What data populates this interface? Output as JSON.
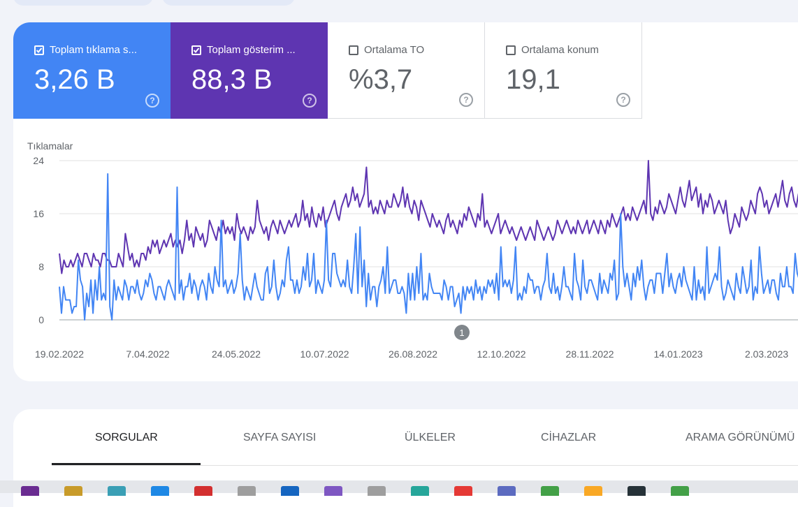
{
  "metrics": [
    {
      "label": "Toplam tıklama s...",
      "value": "3,26 B",
      "checked": true,
      "color": "#4285f4"
    },
    {
      "label": "Toplam gösterim ...",
      "value": "88,3 B",
      "checked": true,
      "color": "#5e35b1"
    },
    {
      "label": "Ortalama TO",
      "value": "%3,7",
      "checked": false
    },
    {
      "label": "Ortalama konum",
      "value": "19,1",
      "checked": false
    }
  ],
  "annotation": "1",
  "chart_data": {
    "type": "line",
    "ylabel": "Tıklamalar",
    "ylim": [
      0,
      24
    ],
    "y_ticks": [
      "24",
      "16",
      "8",
      "0"
    ],
    "x_ticks": [
      "19.02.2022",
      "7.04.2022",
      "24.05.2022",
      "10.07.2022",
      "26.08.2022",
      "12.10.2022",
      "28.11.2022",
      "14.01.2023",
      "2.03.2023"
    ],
    "x_start": "2022-02-19",
    "x_end": "2023-03-25",
    "series": [
      {
        "name": "Toplam tıklama sayısı",
        "color": "#4285f4",
        "values": [
          5,
          1,
          5,
          3,
          3,
          3,
          1,
          2,
          2,
          9,
          6,
          5,
          0,
          4,
          2,
          6,
          1,
          6,
          3,
          8,
          3,
          4,
          3,
          22,
          2,
          0,
          6,
          3,
          5,
          4,
          3,
          6,
          5,
          3,
          5,
          5,
          4,
          6,
          4,
          3,
          4,
          6,
          5,
          7,
          6,
          4,
          3,
          5,
          5,
          4,
          3,
          5,
          6,
          5,
          4,
          3,
          20,
          4,
          6,
          3,
          5,
          5,
          7,
          4,
          6,
          5,
          3,
          5,
          6,
          5,
          3,
          7,
          5,
          4,
          8,
          6,
          5,
          15,
          5,
          6,
          4,
          5,
          6,
          4,
          5,
          7,
          13,
          6,
          3,
          5,
          4,
          3,
          5,
          7,
          5,
          4,
          3,
          3,
          7,
          8,
          4,
          5,
          9,
          5,
          3,
          4,
          6,
          5,
          9,
          11,
          6,
          6,
          4,
          6,
          4,
          5,
          8,
          6,
          10,
          5,
          6,
          10,
          4,
          6,
          5,
          4,
          6,
          15,
          6,
          5,
          10,
          10,
          7,
          6,
          5,
          6,
          5,
          9,
          5,
          4,
          8,
          13,
          4,
          14,
          5,
          9,
          2,
          7,
          3,
          5,
          5,
          2,
          5,
          6,
          8,
          4,
          11,
          4,
          5,
          6,
          6,
          4,
          4,
          5,
          4,
          1,
          7,
          3,
          7,
          3,
          8,
          4,
          10,
          3,
          4,
          3,
          7,
          5,
          4,
          4,
          4,
          4,
          3,
          6,
          5,
          3,
          5,
          5,
          2,
          3,
          4,
          1,
          5,
          3,
          5,
          4,
          5,
          3,
          6,
          4,
          5,
          3,
          5,
          4,
          6,
          5,
          6,
          4,
          7,
          3,
          11,
          5,
          6,
          5,
          6,
          4,
          6,
          11,
          3,
          4,
          3,
          5,
          4,
          7,
          6,
          6,
          4,
          5,
          5,
          3,
          5,
          6,
          10,
          5,
          4,
          7,
          4,
          5,
          3,
          5,
          8,
          5,
          5,
          4,
          3,
          10,
          6,
          5,
          3,
          9,
          5,
          4,
          6,
          6,
          5,
          4,
          3,
          7,
          4,
          6,
          5,
          4,
          7,
          6,
          9,
          3,
          4,
          16,
          8,
          5,
          7,
          5,
          3,
          7,
          5,
          8,
          6,
          9,
          5,
          3,
          5,
          6,
          6,
          4,
          7,
          7,
          7,
          4,
          7,
          10,
          5,
          7,
          5,
          4,
          6,
          7,
          5,
          8,
          6,
          5,
          4,
          3,
          8,
          3,
          6,
          4,
          5,
          3,
          11,
          4,
          5,
          6,
          7,
          6,
          11,
          5,
          3,
          4,
          6,
          5,
          4,
          3,
          7,
          5,
          4,
          8,
          6,
          4,
          5,
          9,
          3,
          5,
          4,
          11,
          7,
          4,
          5,
          6,
          4,
          6,
          6,
          4,
          3,
          7,
          5,
          5,
          8,
          5,
          5,
          4,
          10,
          7,
          6,
          4,
          5,
          6,
          11,
          5
        ]
      },
      {
        "name": "Toplam gösterim sayısı",
        "color": "#5e35b1",
        "values": [
          10,
          7,
          9,
          8,
          8,
          9,
          8,
          9,
          10,
          9,
          8,
          10,
          10,
          9,
          8,
          10,
          9,
          9,
          8,
          10,
          10,
          9,
          9,
          8,
          8,
          8,
          10,
          9,
          8,
          13,
          11,
          9,
          10,
          8,
          9,
          8,
          10,
          10,
          9,
          11,
          10,
          12,
          11,
          12,
          10,
          11,
          12,
          11,
          12,
          13,
          11,
          12,
          11,
          12,
          10,
          12,
          15,
          12,
          13,
          11,
          14,
          13,
          12,
          13,
          11,
          12,
          15,
          14,
          13,
          12,
          14,
          13,
          15,
          13,
          14,
          13,
          14,
          12,
          16,
          14,
          13,
          14,
          13,
          12,
          14,
          13,
          14,
          18,
          15,
          14,
          13,
          14,
          12,
          14,
          15,
          14,
          13,
          15,
          14,
          13,
          14,
          15,
          14,
          15,
          16,
          14,
          15,
          18,
          15,
          16,
          14,
          17,
          15,
          14,
          16,
          15,
          17,
          14,
          15,
          16,
          17,
          18,
          16,
          15,
          17,
          18,
          19,
          17,
          18,
          20,
          18,
          19,
          17,
          18,
          19,
          23,
          17,
          18,
          16,
          17,
          16,
          18,
          17,
          16,
          18,
          17,
          17,
          19,
          18,
          17,
          18,
          20,
          17,
          19,
          17,
          16,
          18,
          17,
          15,
          18,
          17,
          16,
          15,
          14,
          16,
          15,
          14,
          15,
          14,
          13,
          15,
          16,
          14,
          15,
          14,
          13,
          15,
          14,
          16,
          15,
          17,
          16,
          15,
          14,
          16,
          15,
          19,
          14,
          15,
          14,
          13,
          14,
          15,
          16,
          13,
          14,
          15,
          14,
          13,
          14,
          13,
          12,
          13,
          14,
          13,
          12,
          13,
          14,
          13,
          12,
          15,
          14,
          13,
          12,
          13,
          14,
          13,
          12,
          13,
          15,
          14,
          13,
          14,
          15,
          14,
          13,
          14,
          13,
          15,
          14,
          13,
          14,
          15,
          13,
          14,
          15,
          14,
          13,
          15,
          14,
          13,
          15,
          14,
          16,
          15,
          14,
          15,
          16,
          17,
          15,
          16,
          15,
          17,
          16,
          15,
          16,
          17,
          18,
          16,
          24,
          16,
          15,
          17,
          16,
          18,
          17,
          16,
          17,
          19,
          18,
          17,
          16,
          18,
          20,
          18,
          17,
          19,
          21,
          18,
          19,
          20,
          17,
          19,
          16,
          18,
          17,
          19,
          18,
          16,
          17,
          18,
          17,
          16,
          18,
          15,
          13,
          14,
          16,
          15,
          14,
          17,
          16,
          15,
          16,
          18,
          17,
          16,
          19,
          20,
          19,
          17,
          18,
          16,
          17,
          18,
          19,
          17,
          19,
          21,
          18,
          17,
          19,
          20,
          18,
          17,
          19,
          18,
          18,
          19,
          24,
          20
        ]
      }
    ]
  },
  "tabs": [
    "SORGULAR",
    "SAYFA SAYISI",
    "ÜLKELER",
    "CİHAZLAR",
    "ARAMA GÖRÜNÜMÜ"
  ],
  "taskbar": {
    "icon_colors": [
      "#6a2c91",
      "#c89b2a",
      "#3a9fb5",
      "#1e88e5",
      "#d32f2f",
      "#9e9e9e",
      "#1565c0",
      "#7e57c2",
      "#9e9e9e",
      "#26a69a",
      "#e53935",
      "#5c6bc0",
      "#43a047",
      "#f9a825",
      "#263238",
      "#43a047"
    ]
  }
}
